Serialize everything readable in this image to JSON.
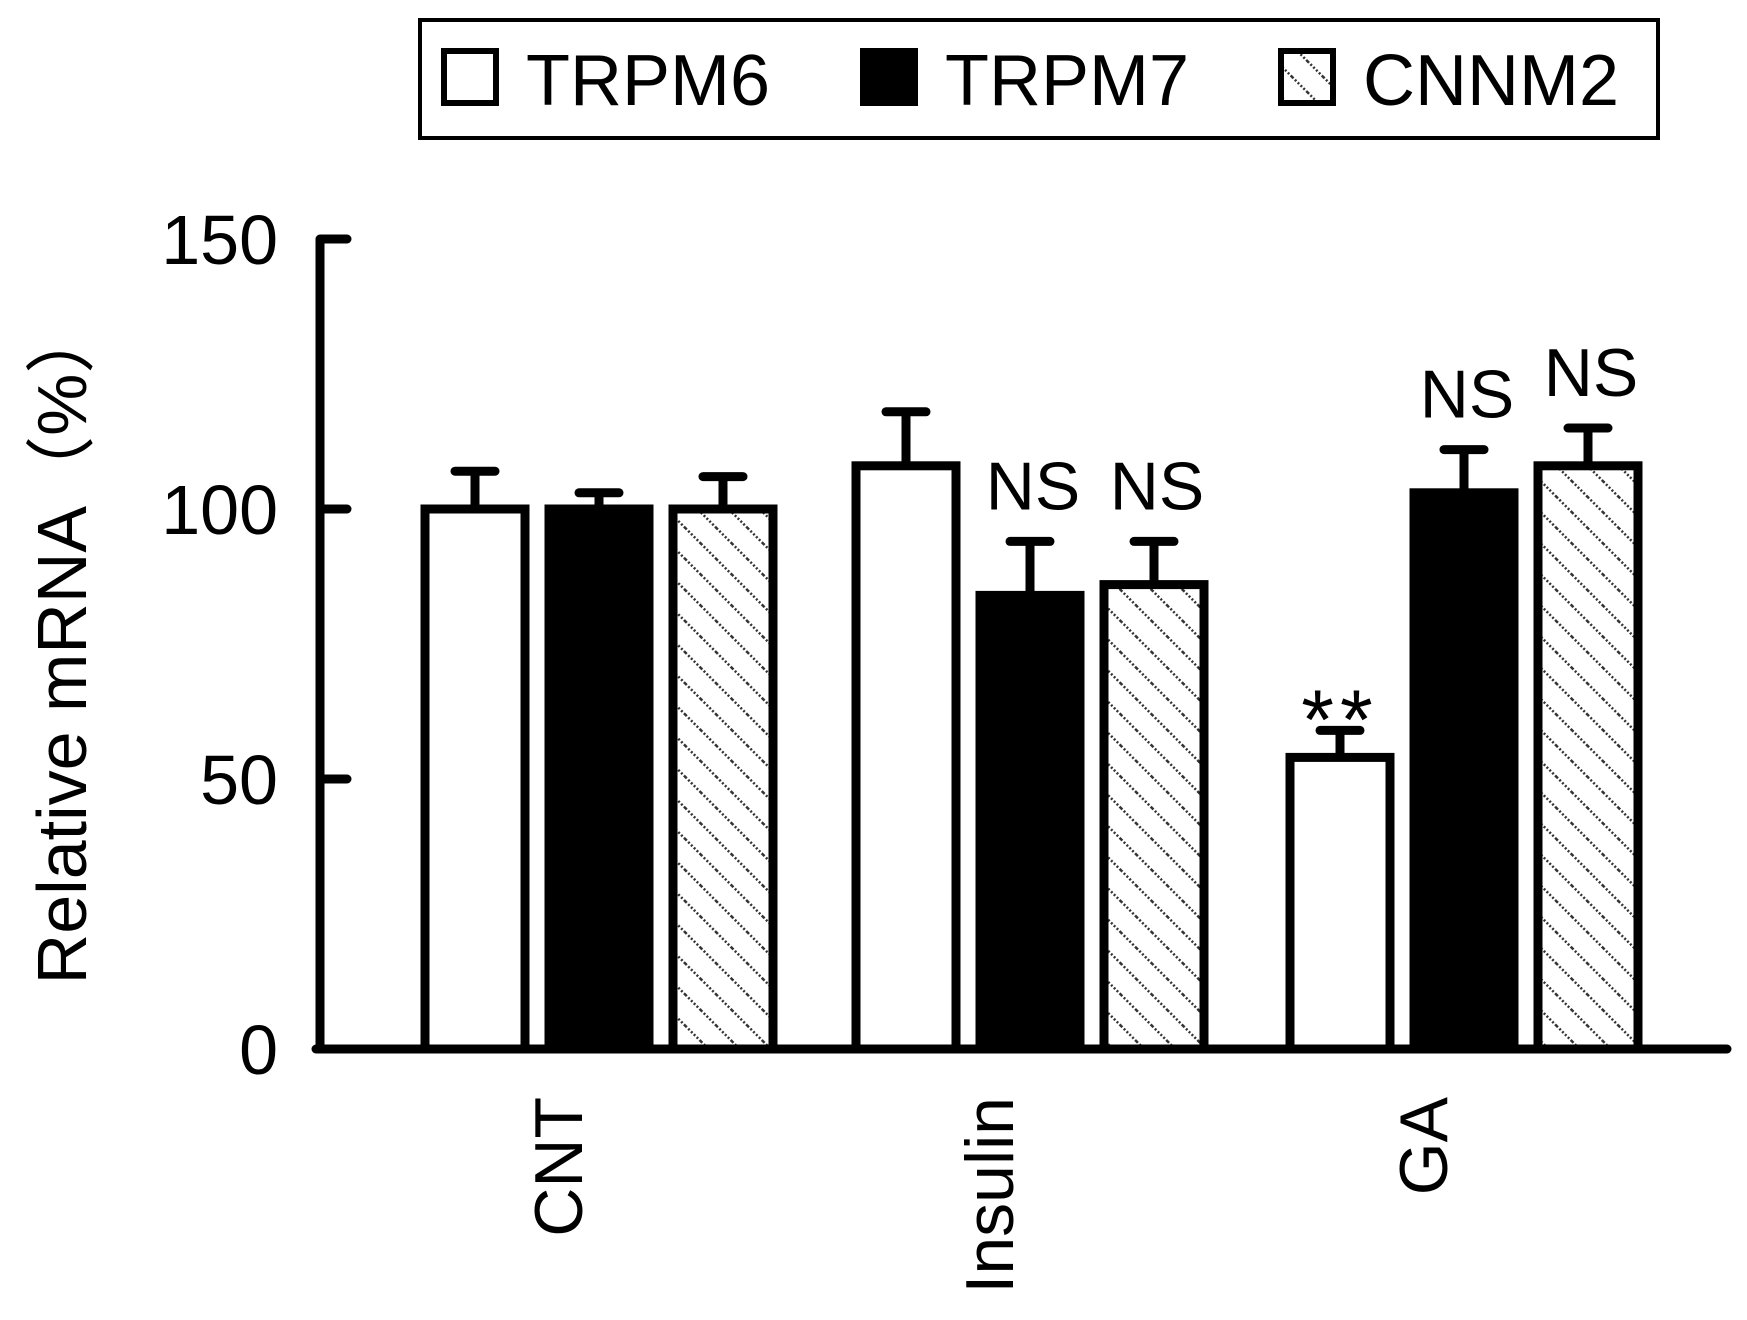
{
  "chart_data": {
    "type": "bar",
    "title": "",
    "xlabel": "",
    "ylabel": "Relative mRNA（%）",
    "ylim": [
      0,
      150
    ],
    "yticks": [
      0,
      50,
      100,
      150
    ],
    "grid": false,
    "legend_position": "top",
    "categories": [
      "CNT",
      "Insulin",
      "GA"
    ],
    "series": [
      {
        "name": "TRPM6",
        "fill": "white",
        "values": [
          100,
          108,
          54
        ],
        "errors": [
          7,
          10,
          5
        ],
        "annotations": [
          "",
          "",
          "**"
        ]
      },
      {
        "name": "TRPM7",
        "fill": "black",
        "values": [
          100,
          84,
          103
        ],
        "errors": [
          3,
          10,
          8
        ],
        "annotations": [
          "",
          "NS",
          "NS"
        ]
      },
      {
        "name": "CNNM2",
        "fill": "hatched",
        "values": [
          100,
          86,
          108
        ],
        "errors": [
          6,
          8,
          7
        ],
        "annotations": [
          "",
          "NS",
          "NS"
        ]
      }
    ]
  },
  "colors": {
    "ink": "#000000",
    "paper": "#ffffff",
    "hatch": "#333333"
  }
}
